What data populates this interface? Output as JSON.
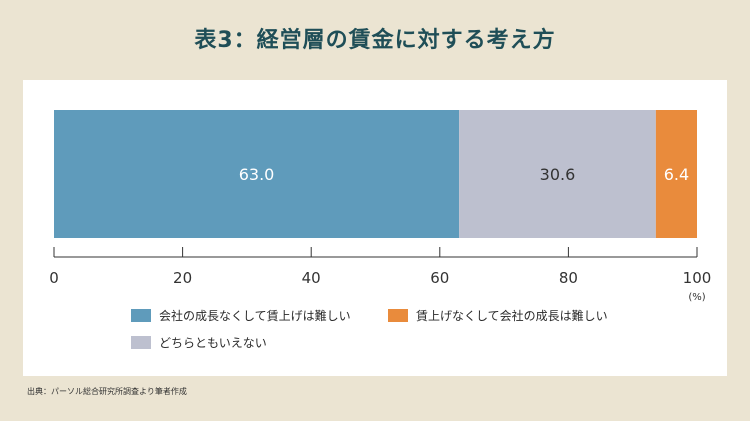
{
  "title": "表3：経営層の賃金に対する考え方",
  "source": "出典：パーソル総合研究所調査より筆者作成",
  "colors": {
    "background": "#ebe4d2",
    "panel": "#ffffff",
    "title": "#1f4e57",
    "axis": "#333333"
  },
  "chart_data": {
    "type": "bar",
    "orientation": "horizontal",
    "stacked": true,
    "title": "表3：経営層の賃金に対する考え方",
    "series": [
      {
        "name": "会社の成長なくして賃上げは難しい",
        "value": 63.0,
        "label": "63.0",
        "color": "#5f9bbb"
      },
      {
        "name": "どちらともいえない",
        "value": 30.6,
        "label": "30.6",
        "color": "#bdc0cf"
      },
      {
        "name": "賃上げなくして会社の成長は難しい",
        "value": 6.4,
        "label": "6.4",
        "color": "#e98b3c"
      }
    ],
    "xlim": [
      0,
      100
    ],
    "xticks": [
      "0",
      "20",
      "40",
      "60",
      "80",
      "100"
    ],
    "xunit": "(%)",
    "grid": false,
    "legend_position": "bottom"
  },
  "legend": [
    {
      "label": "会社の成長なくして賃上げは難しい",
      "color": "#5f9bbb"
    },
    {
      "label": "賃上げなくして会社の成長は難しい",
      "color": "#e98b3c"
    },
    {
      "label": "どちらともいえない",
      "color": "#bdc0cf"
    }
  ]
}
